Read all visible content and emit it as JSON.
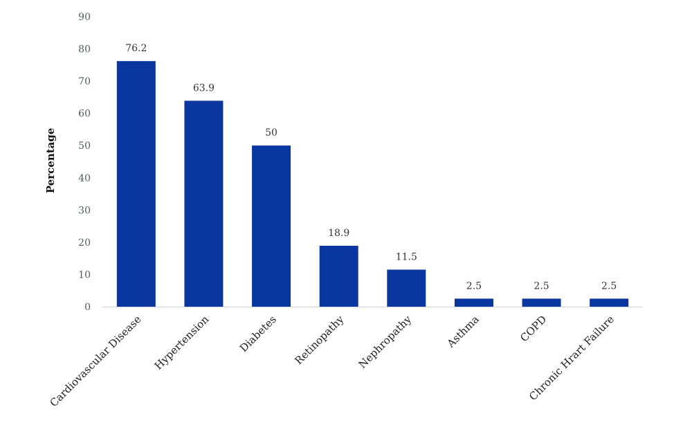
{
  "chart_data": {
    "type": "bar",
    "categories": [
      "Cardiovascular Disease",
      "Hypertension",
      "Diabetes",
      "Retinopathy",
      "Nephropathy",
      "Asthma",
      "COPD",
      "Chronic Hrart Failure"
    ],
    "values": [
      76.2,
      63.9,
      50,
      18.9,
      11.5,
      2.5,
      2.5,
      2.5
    ],
    "value_labels": [
      "76.2",
      "63.9",
      "50",
      "18.9",
      "11.5",
      "2.5",
      "2.5",
      "2.5"
    ],
    "title": "",
    "xlabel": "",
    "ylabel": "Percentage",
    "ylim": [
      0,
      90
    ],
    "yticks": [
      0,
      10,
      20,
      30,
      40,
      50,
      60,
      70,
      80,
      90
    ],
    "grid": false,
    "bar_color": "#0a36a0"
  }
}
